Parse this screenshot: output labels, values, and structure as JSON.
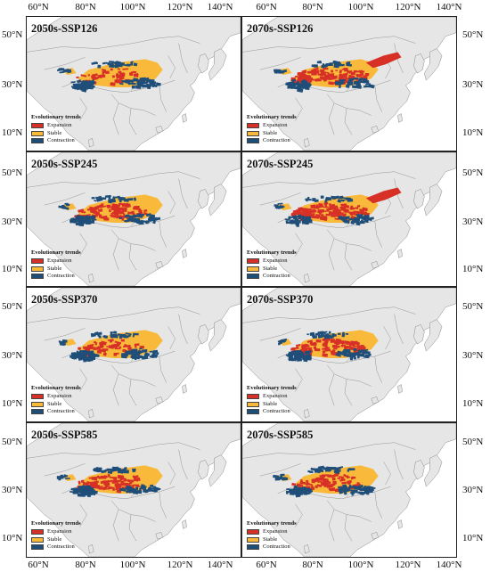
{
  "axes": {
    "longitude_labels": [
      "60°N",
      "80°N",
      "100°N",
      "120°N",
      "140°N"
    ],
    "latitude_labels": [
      "50°N",
      "30°N",
      "10°N"
    ]
  },
  "legend": {
    "title": "Evolutionary trends",
    "items": [
      {
        "label": "Expansion",
        "color": "#d73027"
      },
      {
        "label": "Stable",
        "color": "#f9b93a"
      },
      {
        "label": "Contraction",
        "color": "#1f4e79"
      }
    ]
  },
  "colors": {
    "land": "#e6e6e6",
    "ocean": "#ffffff",
    "border": "#8a8a8a"
  },
  "panels": [
    {
      "title": "2050s-SSP126",
      "expansion_level": 0.2,
      "contraction_level": 0.45
    },
    {
      "title": "2070s-SSP126",
      "expansion_level": 0.85,
      "contraction_level": 0.35
    },
    {
      "title": "2050s-SSP245",
      "expansion_level": 0.55,
      "contraction_level": 0.4
    },
    {
      "title": "2070s-SSP245",
      "expansion_level": 0.8,
      "contraction_level": 0.3
    },
    {
      "title": "2050s-SSP370",
      "expansion_level": 0.25,
      "contraction_level": 0.55
    },
    {
      "title": "2070s-SSP370",
      "expansion_level": 0.6,
      "contraction_level": 0.5
    },
    {
      "title": "2050s-SSP585",
      "expansion_level": 0.5,
      "contraction_level": 0.45
    },
    {
      "title": "2070s-SSP585",
      "expansion_level": 0.45,
      "contraction_level": 0.6
    }
  ]
}
